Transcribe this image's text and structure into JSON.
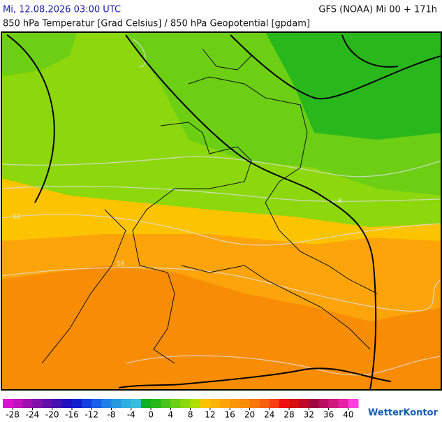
{
  "header": {
    "date": "Mi, 12.08.2026 03:00 UTC",
    "model": "GFS (NOAA) Mi 00 + 171h",
    "subtitle": "850 hPa Temperatur [Grad Celsius] / 850 hPa Geopotential [gpdam]"
  },
  "map": {
    "contour_labels": [
      8,
      12,
      16
    ]
  },
  "colorbar": {
    "range": [
      -30,
      42
    ],
    "ticks": [
      -28,
      -24,
      -20,
      -16,
      -12,
      -8,
      -4,
      0,
      4,
      8,
      12,
      16,
      20,
      24,
      28,
      32,
      36,
      40
    ],
    "colors": [
      "#e010d0",
      "#c010c0",
      "#a010b0",
      "#8010a8",
      "#6010a8",
      "#4010b0",
      "#2010c0",
      "#1020d0",
      "#1040e0",
      "#1860e8",
      "#2080e8",
      "#2898e0",
      "#30b0e0",
      "#38c0d8",
      "#10b020",
      "#28b81c",
      "#48c41c",
      "#6ccf14",
      "#8cd80c",
      "#b0e008",
      "#fcc400",
      "#fcb408",
      "#fca40a",
      "#fc940a",
      "#f98c05",
      "#f87808",
      "#f86010",
      "#f84010",
      "#f01010",
      "#d81010",
      "#c00828",
      "#a00840",
      "#b81060",
      "#d01880",
      "#e820a8",
      "#ff40e0"
    ]
  },
  "logo": "WetterKontor"
}
